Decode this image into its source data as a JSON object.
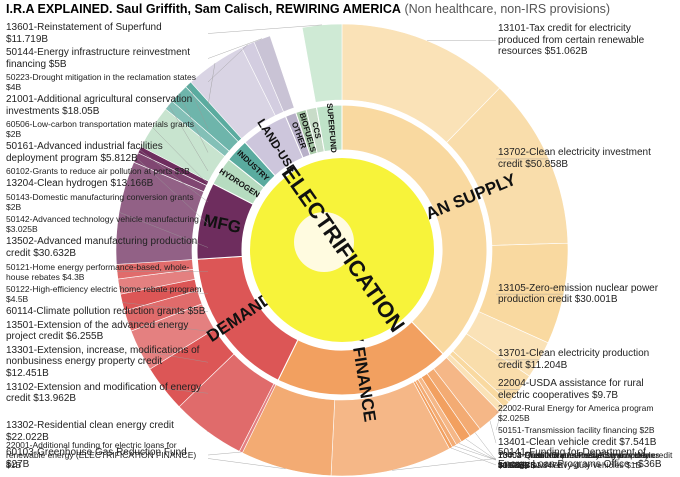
{
  "chart_data": {
    "type": "sunburst",
    "title": "I.R.A EXPLAINED. Saul Griffith, Sam Calisch, REWIRING AMERICA",
    "subtitle": "(Non healthcare, non-IRS provisions)",
    "center": "ELECTRIFICATION",
    "groups": [
      {
        "name": "CLEAN SUPPLY",
        "color": "#f9d9a0",
        "items": [
          {
            "label": "13101-Tax credit for electricity produced from certain renewable resources",
            "value": 51.062,
            "value_label": "$51.062B"
          },
          {
            "label": "13702-Clean electricity investment credit",
            "value": 50.858,
            "value_label": "$50.858B"
          },
          {
            "label": "13105-Zero-emission nuclear power production credit",
            "value": 30.001,
            "value_label": "$30.001B"
          },
          {
            "label": "13701-Clean electricity production credit",
            "value": 11.204,
            "value_label": "$11.204B"
          },
          {
            "label": "22004-USDA assistance for rural electric cooperatives",
            "value": 9.7,
            "value_label": "$9.7B"
          },
          {
            "label": "22002-Rural Energy for America program",
            "value": 2.025,
            "value_label": "$2.025B"
          },
          {
            "label": "50151-Transmission facility financing",
            "value": 2,
            "value_label": "$2B"
          }
        ]
      },
      {
        "name": "EV FINANCE",
        "color": "#f2a060",
        "items": [
          {
            "label": "13401-Clean vehicle credit",
            "value": 7.541,
            "value_label": "$7.541B"
          },
          {
            "label": "13403-Qualified commercial clean vehicles",
            "value": 3.583,
            "value_label": "$3.583B"
          },
          {
            "label": "70002-United States Postal Service clean fleets",
            "value": 3,
            "value_label": "$3B"
          },
          {
            "label": "13404-Alternative fuel refueling property credit",
            "value": 1.738,
            "value_label": "$1.738B"
          },
          {
            "label": "13402-Credit for previously-owned clean vehicles",
            "value": 1.347,
            "value_label": "$1.347B"
          },
          {
            "label": "60101-Clean heavy-duty vehicles",
            "value": 1,
            "value_label": "$1B"
          },
          {
            "label": "50141-Funding for Department of Energy Loan Programs Office",
            "value": 36,
            "value_label": "~$36B"
          },
          {
            "label": "60103-Greenhouse Gas Reduction Fund",
            "value": 27,
            "value_label": "$27B"
          }
        ]
      },
      {
        "name": "DEMAND",
        "color": "#dc5656",
        "items": [
          {
            "label": "22001-Additional funding for electric loans for renewable energy (ELECTRIFICATION FINANCE)",
            "value": 1,
            "value_label": "$1B"
          },
          {
            "label": "13302-Residential clean energy credit",
            "value": 22.022,
            "value_label": "$22.022B"
          },
          {
            "label": "13102-Extension and modification of energy credit",
            "value": 13.962,
            "value_label": "$13.962B"
          },
          {
            "label": "13301-Extension, increase, modifications of nonbusiness energy property credit",
            "value": 12.451,
            "value_label": "$12.451B"
          },
          {
            "label": "13501-Extension of the advanced energy project credit",
            "value": 6.255,
            "value_label": "$6.255B"
          },
          {
            "label": "60114-Climate pollution reduction grants",
            "value": 5,
            "value_label": "$5B"
          },
          {
            "label": "50122-High-efficiency electric home rebate program",
            "value": 4.5,
            "value_label": "$4.5B"
          },
          {
            "label": "50121-Home energy performance-based, whole-house rebates",
            "value": 4.3,
            "value_label": "$4.3B"
          }
        ]
      },
      {
        "name": "MFG",
        "color": "#6e2d5e",
        "items": [
          {
            "label": "13502-Advanced manufacturing production credit",
            "value": 30.632,
            "value_label": "$30.632B"
          },
          {
            "label": "50142-Advanced technology vehicle manufacturing",
            "value": 3.025,
            "value_label": "$3.025B"
          },
          {
            "label": "50143-Domestic manufacturing conversion grants",
            "value": 2,
            "value_label": "$2B"
          }
        ]
      },
      {
        "name": "HYDROGEN",
        "color": "#b6dcc0",
        "items": [
          {
            "label": "13204-Clean hydrogen",
            "value": 13.166,
            "value_label": "$13.166B"
          }
        ]
      },
      {
        "name": "INDUSTRY",
        "color": "#5aab9f",
        "items": [
          {
            "label": "60102-Grants to reduce air pollution at ports",
            "value": 3,
            "value_label": "$3B"
          },
          {
            "label": "50161-Advanced industrial facilities deployment program",
            "value": 5.812,
            "value_label": "$5.812B"
          },
          {
            "label": "60506-Low-carbon transportation materials grants",
            "value": 2,
            "value_label": "$2B"
          }
        ]
      },
      {
        "name": "LAND-USE",
        "color": "#cdc6dc",
        "items": [
          {
            "label": "21001-Additional agricultural conservation investments",
            "value": 18.05,
            "value_label": "$18.05B"
          },
          {
            "label": "50223-Drought mitigation in the reclamation states",
            "value": 4,
            "value_label": "$4B"
          }
        ]
      },
      {
        "name": "OTHER",
        "color": "#b8b0c8",
        "items": [
          {
            "label": "50144-Energy infrastructure reinvestment financing",
            "value": 5,
            "value_label": "$5B"
          }
        ]
      },
      {
        "name": "BIOFUELS",
        "color": "#a8c8a8",
        "items": []
      },
      {
        "name": "CCS",
        "color": "#c8dcc8",
        "items": []
      },
      {
        "name": "SUPERFUND",
        "color": "#bfe3c8",
        "items": [
          {
            "label": "13601-Reinstatement of Superfund",
            "value": 11.719,
            "value_label": "$11.719B"
          }
        ]
      }
    ]
  }
}
